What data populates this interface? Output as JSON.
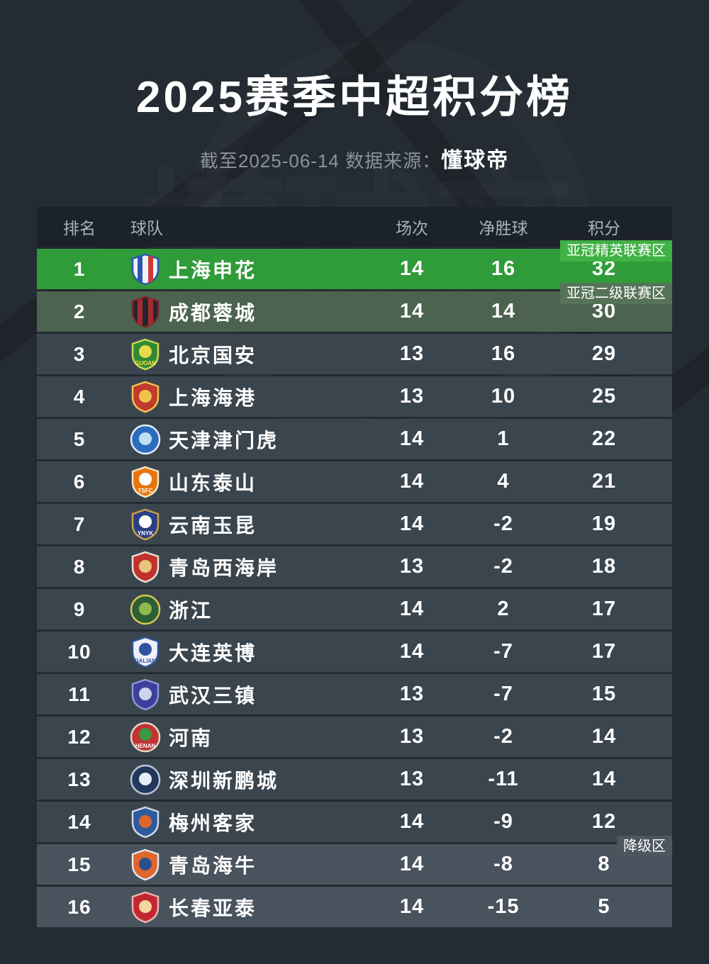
{
  "header": {
    "subtitle_prefix": "截至2025-06-14 数据来源：",
    "source": "懂球帝"
  },
  "watermark": {
    "text": "懂球帝"
  },
  "zones": {
    "acl_elite": "亚冠精英联赛区",
    "acl_two": "亚冠二级联赛区",
    "relegation": "降级区"
  },
  "colors": {
    "background": "#242b33",
    "header_bg": "#1b222a",
    "row_normal": "#3b454e",
    "row_acl_elite": "#2f9b39",
    "row_acl_two": "#4b634f",
    "row_relegation": "#49535d",
    "badge_acl_elite": "#40b145",
    "badge_acl_two": "#567259",
    "badge_relegation": "#4c565f",
    "text_primary": "#ffffff",
    "text_muted": "#8b929a"
  },
  "chart_data": {
    "type": "table",
    "title": "2025赛季中超积分榜",
    "columns": [
      "排名",
      "球队",
      "场次",
      "净胜球",
      "积分"
    ],
    "rows": [
      {
        "rank": 1,
        "team": "上海申花",
        "matches": 14,
        "gd": 16,
        "points": 32,
        "zone": "acl_elite",
        "badge": "亚冠精英联赛区",
        "logo": {
          "shape": "shield",
          "fill": "#eef2f7",
          "border": "#2b57ac",
          "stripes": [
            "#2b57ac",
            "#cf3a36"
          ]
        }
      },
      {
        "rank": 2,
        "team": "成都蓉城",
        "matches": 14,
        "gd": 14,
        "points": 30,
        "zone": "acl_two",
        "badge": "亚冠二级联赛区",
        "logo": {
          "shape": "shield",
          "fill": "#23262d",
          "border": "#7e2129",
          "stripes": [
            "#a42c31",
            "#a42c31"
          ]
        }
      },
      {
        "rank": 3,
        "team": "北京国安",
        "matches": 13,
        "gd": 16,
        "points": 29,
        "zone": "normal",
        "badge": null,
        "logo": {
          "shape": "shield",
          "fill": "#2f8a35",
          "border": "#cfd84e",
          "emblem": "#e8d94a",
          "tx": "GUOAN",
          "txColor": "#ffe14d"
        }
      },
      {
        "rank": 4,
        "team": "上海海港",
        "matches": 13,
        "gd": 10,
        "points": 25,
        "zone": "normal",
        "badge": null,
        "logo": {
          "shape": "shield",
          "fill": "#c03a2e",
          "border": "#f0c24a",
          "emblem": "#f0c24a"
        }
      },
      {
        "rank": 5,
        "team": "天津津门虎",
        "matches": 14,
        "gd": 1,
        "points": 22,
        "zone": "normal",
        "badge": null,
        "logo": {
          "shape": "circle",
          "fill": "#2a6cc0",
          "border": "#e6eef7",
          "emblem": "#bfe0f2"
        }
      },
      {
        "rank": 6,
        "team": "山东泰山",
        "matches": 14,
        "gd": 4,
        "points": 21,
        "zone": "normal",
        "badge": null,
        "logo": {
          "shape": "shield",
          "fill": "#e8750f",
          "border": "#f4e6c8",
          "emblem": "#ffffff",
          "tx": "TSFC",
          "txColor": "#ffffff"
        }
      },
      {
        "rank": 7,
        "team": "云南玉昆",
        "matches": 14,
        "gd": -2,
        "points": 19,
        "zone": "normal",
        "badge": null,
        "logo": {
          "shape": "shield",
          "fill": "#2c3f86",
          "border": "#c9a04a",
          "emblem": "#ffffff",
          "tx": "YNYK",
          "txColor": "#ffffff"
        }
      },
      {
        "rank": 8,
        "team": "青岛西海岸",
        "matches": 13,
        "gd": -2,
        "points": 18,
        "zone": "normal",
        "badge": null,
        "logo": {
          "shape": "shield",
          "fill": "#c1322f",
          "border": "#e9e2d8",
          "emblem": "#e8c77b"
        }
      },
      {
        "rank": 9,
        "team": "浙江",
        "matches": 14,
        "gd": 2,
        "points": 17,
        "zone": "normal",
        "badge": null,
        "logo": {
          "shape": "circle",
          "fill": "#2c5e38",
          "border": "#d9c84a",
          "emblem": "#8fba4e"
        }
      },
      {
        "rank": 10,
        "team": "大连英博",
        "matches": 14,
        "gd": -7,
        "points": 17,
        "zone": "normal",
        "badge": null,
        "logo": {
          "shape": "shield",
          "fill": "#eef1f6",
          "border": "#31529e",
          "emblem": "#31529e",
          "tx": "DALIAN",
          "txColor": "#31529e"
        }
      },
      {
        "rank": 11,
        "team": "武汉三镇",
        "matches": 13,
        "gd": -7,
        "points": 15,
        "zone": "normal",
        "badge": null,
        "logo": {
          "shape": "shield",
          "fill": "#3c3f9b",
          "border": "#8f96d6",
          "emblem": "#cdd3ea"
        }
      },
      {
        "rank": 12,
        "team": "河南",
        "matches": 13,
        "gd": -2,
        "points": 14,
        "zone": "normal",
        "badge": null,
        "logo": {
          "shape": "circle",
          "fill": "#c23133",
          "border": "#e3d9c2",
          "emblem": "#3a9643",
          "tx": "HENAN",
          "txColor": "#ffffff"
        }
      },
      {
        "rank": 13,
        "team": "深圳新鹏城",
        "matches": 13,
        "gd": -11,
        "points": 14,
        "zone": "normal",
        "badge": null,
        "logo": {
          "shape": "circle",
          "fill": "#22375c",
          "border": "#b9c6d8",
          "emblem": "#e8eef5"
        }
      },
      {
        "rank": 14,
        "team": "梅州客家",
        "matches": 14,
        "gd": -9,
        "points": 12,
        "zone": "normal",
        "badge": null,
        "logo": {
          "shape": "shield",
          "fill": "#2e5a9e",
          "border": "#cfd8e6",
          "emblem": "#e0662c"
        }
      },
      {
        "rank": 15,
        "team": "青岛海牛",
        "matches": 14,
        "gd": -8,
        "points": 8,
        "zone": "relegation",
        "badge": "降级区",
        "logo": {
          "shape": "shield",
          "fill": "#e0662c",
          "border": "#dfe6f0",
          "emblem": "#2e4f8e"
        }
      },
      {
        "rank": 16,
        "team": "长春亚泰",
        "matches": 14,
        "gd": -15,
        "points": 5,
        "zone": "relegation",
        "badge": null,
        "logo": {
          "shape": "shield",
          "fill": "#c22731",
          "border": "#e7b6b2",
          "emblem": "#f2d8a0"
        }
      }
    ]
  }
}
